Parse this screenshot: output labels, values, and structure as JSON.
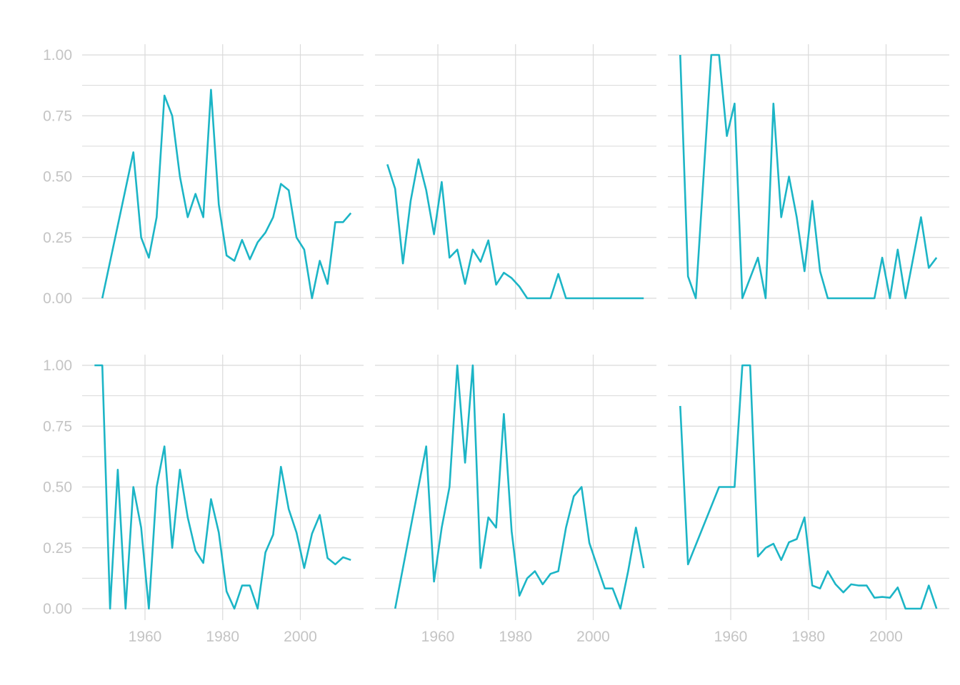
{
  "chart_data": {
    "type": "line",
    "layout": "facet grid 2 rows x 3 columns, shared axes",
    "color": "#1cb5c6",
    "x_ticks": [
      1960,
      1980,
      2000
    ],
    "y_ticks": [
      "0.00",
      "0.25",
      "0.50",
      "0.75",
      "1.00"
    ],
    "xlim": [
      1944,
      2016
    ],
    "ylim": [
      -0.06,
      1.06
    ],
    "grid": true,
    "panels": [
      {
        "x": [
          1949,
          1957,
          1959,
          1961,
          1963,
          1965,
          1967,
          1969,
          1971,
          1973,
          1975,
          1977,
          1979,
          1981,
          1983,
          1985,
          1987,
          1989,
          1991,
          1993,
          1995,
          1997,
          1999,
          2001,
          2003,
          2005,
          2007,
          2009,
          2011,
          2013
        ],
        "y": [
          0,
          0.6,
          0.25,
          0.167,
          0.333,
          0.833,
          0.75,
          0.5,
          0.333,
          0.429,
          0.333,
          0.857,
          0.385,
          0.176,
          0.154,
          0.24,
          0.16,
          0.23,
          0.27,
          0.333,
          0.47,
          0.444,
          0.25,
          0.2,
          0,
          0.154,
          0.059,
          0.313,
          0.313,
          0.35
        ]
      },
      {
        "x": [
          1947,
          1949,
          1951,
          1953,
          1955,
          1957,
          1959,
          1961,
          1963,
          1965,
          1967,
          1969,
          1971,
          1973,
          1975,
          1977,
          1979,
          1981,
          1983,
          1985,
          1987,
          1989,
          1991,
          1993,
          1995,
          1997,
          1999,
          2001,
          2003,
          2005,
          2007,
          2009,
          2011,
          2013
        ],
        "y": [
          0.55,
          0.45,
          0.143,
          0.4,
          0.571,
          0.444,
          0.263,
          0.478,
          0.167,
          0.2,
          0.059,
          0.2,
          0.15,
          0.238,
          0.056,
          0.105,
          0.083,
          0.048,
          0,
          0,
          0,
          0,
          0.1,
          0,
          0,
          0,
          0,
          0,
          0,
          0,
          0,
          0,
          0,
          0
        ]
      },
      {
        "x": [
          1947,
          1949,
          1951,
          1955,
          1957,
          1959,
          1961,
          1963,
          1967,
          1969,
          1971,
          1973,
          1975,
          1977,
          1979,
          1981,
          1983,
          1985,
          1987,
          1989,
          1991,
          1993,
          1995,
          1997,
          1999,
          2001,
          2003,
          2005,
          2009,
          2011,
          2013
        ],
        "y": [
          1.0,
          0.09,
          0,
          1.0,
          1.0,
          0.667,
          0.8,
          0,
          0.167,
          0,
          0.8,
          0.333,
          0.5,
          0.333,
          0.111,
          0.4,
          0.111,
          0,
          0,
          0,
          0,
          0,
          0,
          0,
          0.167,
          0,
          0.2,
          0,
          0.333,
          0.125,
          0.167
        ]
      },
      {
        "x": [
          1947,
          1949,
          1951,
          1953,
          1955,
          1957,
          1959,
          1961,
          1963,
          1965,
          1967,
          1969,
          1971,
          1973,
          1975,
          1977,
          1979,
          1981,
          1983,
          1985,
          1987,
          1989,
          1991,
          1993,
          1995,
          1997,
          1999,
          2001,
          2003,
          2005,
          2007,
          2009,
          2011,
          2013
        ],
        "y": [
          1.0,
          1.0,
          0,
          0.571,
          0,
          0.5,
          0.333,
          0,
          0.5,
          0.667,
          0.25,
          0.571,
          0.375,
          0.238,
          0.188,
          0.45,
          0.313,
          0.071,
          0,
          0.095,
          0.095,
          0,
          0.231,
          0.304,
          0.583,
          0.409,
          0.313,
          0.167,
          0.308,
          0.385,
          0.208,
          0.182,
          0.211,
          0.2
        ]
      },
      {
        "x": [
          1949,
          1957,
          1959,
          1961,
          1963,
          1965,
          1967,
          1969,
          1971,
          1973,
          1975,
          1977,
          1979,
          1981,
          1983,
          1985,
          1987,
          1989,
          1991,
          1993,
          1995,
          1997,
          1999,
          2001,
          2003,
          2005,
          2007,
          2009,
          2011,
          2013
        ],
        "y": [
          0,
          0.667,
          0.111,
          0.333,
          0.5,
          1.0,
          0.6,
          1.0,
          0.167,
          0.375,
          0.333,
          0.8,
          0.318,
          0.053,
          0.125,
          0.154,
          0.1,
          0.143,
          0.154,
          0.333,
          0.462,
          0.5,
          0.27,
          0.176,
          0.083,
          0.083,
          0,
          0.154,
          0.333,
          0.167
        ]
      },
      {
        "x": [
          1947,
          1949,
          1957,
          1959,
          1961,
          1963,
          1965,
          1967,
          1969,
          1971,
          1973,
          1975,
          1977,
          1979,
          1981,
          1983,
          1985,
          1987,
          1989,
          1991,
          1993,
          1995,
          1997,
          1999,
          2001,
          2003,
          2005,
          2007,
          2009,
          2011,
          2013
        ],
        "y": [
          0.833,
          0.182,
          0.5,
          0.5,
          0.5,
          1.0,
          1.0,
          0.214,
          0.25,
          0.267,
          0.2,
          0.273,
          0.286,
          0.375,
          0.095,
          0.083,
          0.154,
          0.1,
          0.067,
          0.1,
          0.095,
          0.095,
          0.045,
          0.048,
          0.045,
          0.087,
          0,
          0,
          0,
          0.095,
          0
        ]
      }
    ]
  }
}
